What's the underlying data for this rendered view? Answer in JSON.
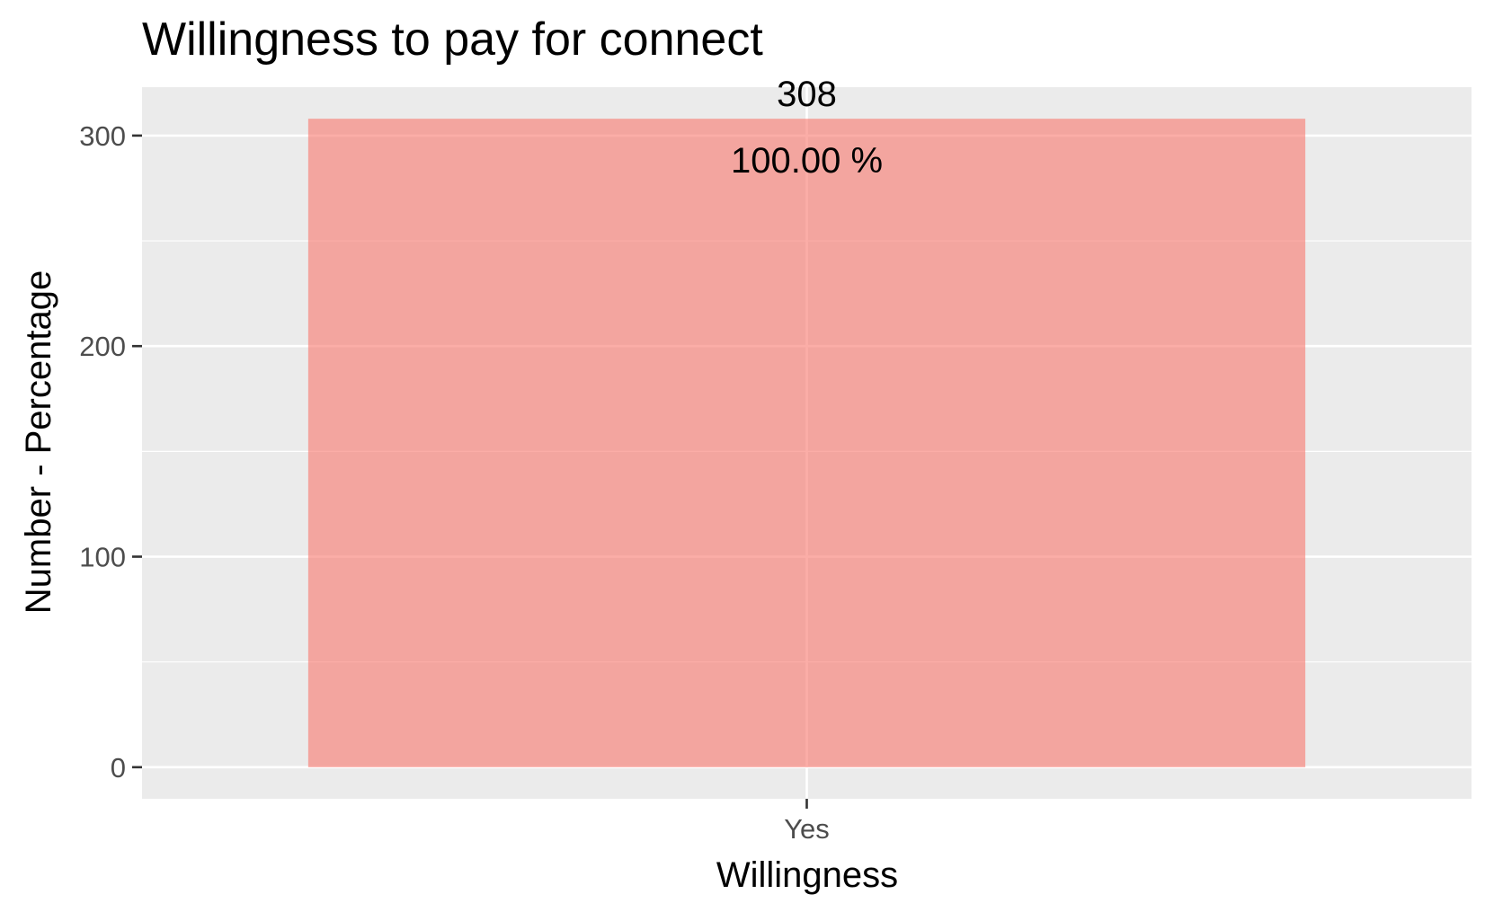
{
  "chart_data": {
    "type": "bar",
    "title": "Willingness to pay for connect",
    "xlabel": "Willingness",
    "ylabel": "Number - Percentage",
    "categories": [
      "Yes"
    ],
    "values": [
      308
    ],
    "value_labels": [
      "308"
    ],
    "percent_labels": [
      "100.00 %"
    ],
    "ylim": [
      -15,
      323
    ],
    "y_ticks": [
      0,
      100,
      200,
      300
    ],
    "y_tick_labels": [
      "0",
      "100",
      "200",
      "300"
    ],
    "grid": true,
    "legend": "none",
    "colors": {
      "panel_background": "#ebebeb",
      "grid": "#ffffff",
      "bar": "#f8766d",
      "bar_opacity": 0.6,
      "tick_text": "#4d4d4d",
      "tick_mark": "#333333",
      "text": "#000000"
    }
  }
}
